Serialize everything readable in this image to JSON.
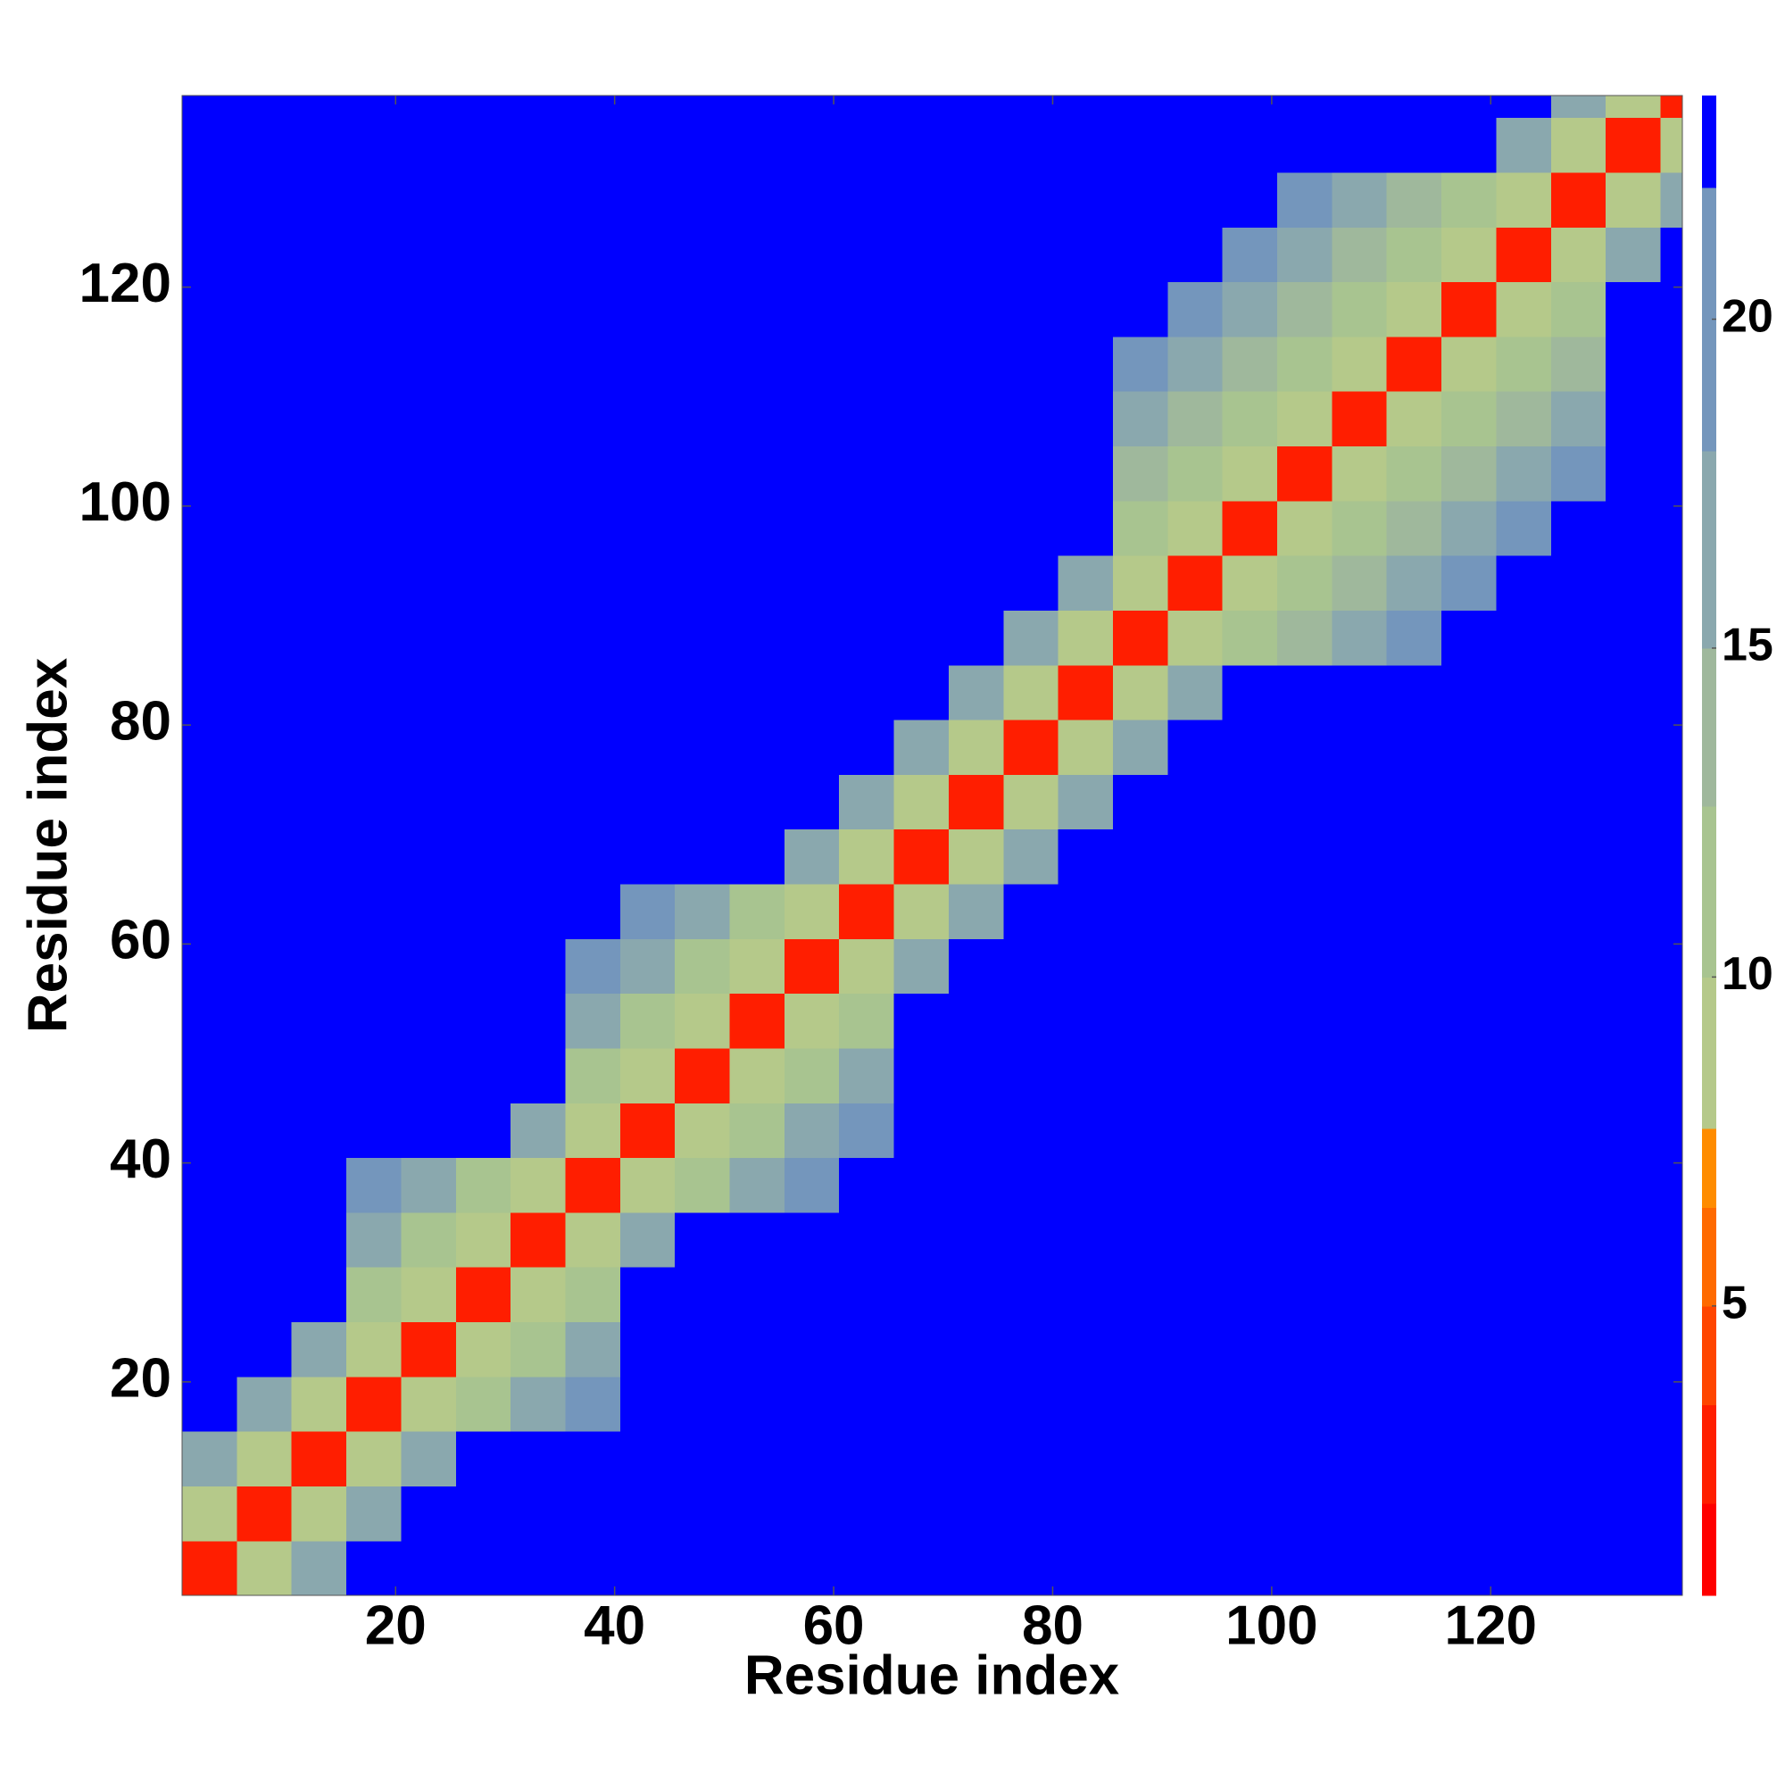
{
  "chart_data": {
    "type": "heatmap",
    "xlabel": "Residue index",
    "ylabel": "Residue index",
    "xlim": [
      0.5,
      137.5
    ],
    "ylim": [
      0.5,
      137.5
    ],
    "xticks": [
      20,
      40,
      60,
      80,
      100,
      120
    ],
    "yticks": [
      20,
      40,
      60,
      80,
      100,
      120
    ],
    "xbins": [
      0.5,
      5.5,
      10.5,
      15.5,
      20.5,
      25.5,
      30.5,
      35.5,
      40.5,
      45.5,
      50.5,
      55.5,
      60.5,
      65.5,
      70.5,
      75.5,
      80.5,
      85.5,
      90.5,
      95.5,
      100.5,
      105.5,
      110.5,
      115.5,
      120.5,
      125.5,
      130.5,
      135.5,
      137.5
    ],
    "ybins": [
      0.5,
      5.5,
      10.5,
      15.5,
      20.5,
      25.5,
      30.5,
      35.5,
      40.5,
      45.5,
      50.5,
      55.5,
      60.5,
      65.5,
      70.5,
      75.5,
      80.5,
      85.5,
      90.5,
      95.5,
      100.5,
      105.5,
      110.5,
      115.5,
      120.5,
      125.5,
      130.5,
      135.5,
      137.5
    ],
    "z": [
      [
        3,
        9,
        17,
        24,
        24,
        24,
        24,
        24,
        24,
        24,
        24,
        24,
        24,
        24,
        24,
        24,
        24,
        24,
        24,
        24,
        24,
        24,
        24,
        24,
        24,
        24,
        24,
        24
      ],
      [
        9,
        3,
        9,
        17,
        24,
        24,
        24,
        24,
        24,
        24,
        24,
        24,
        24,
        24,
        24,
        24,
        24,
        24,
        24,
        24,
        24,
        24,
        24,
        24,
        24,
        24,
        24,
        24
      ],
      [
        17,
        9,
        3,
        9,
        17,
        24,
        24,
        24,
        24,
        24,
        24,
        24,
        24,
        24,
        24,
        24,
        24,
        24,
        24,
        24,
        24,
        24,
        24,
        24,
        24,
        24,
        24,
        24
      ],
      [
        24,
        17,
        9,
        3,
        9,
        12,
        15,
        18,
        24,
        24,
        24,
        24,
        24,
        24,
        24,
        24,
        24,
        24,
        24,
        24,
        24,
        24,
        24,
        24,
        24,
        24,
        24,
        24
      ],
      [
        24,
        24,
        17,
        9,
        3,
        9,
        12,
        15,
        24,
        24,
        24,
        24,
        24,
        24,
        24,
        24,
        24,
        24,
        24,
        24,
        24,
        24,
        24,
        24,
        24,
        24,
        24,
        24
      ],
      [
        24,
        24,
        24,
        12,
        9,
        3,
        9,
        12,
        24,
        24,
        24,
        24,
        24,
        24,
        24,
        24,
        24,
        24,
        24,
        24,
        24,
        24,
        24,
        24,
        24,
        24,
        24,
        24
      ],
      [
        24,
        24,
        24,
        15,
        12,
        9,
        3,
        9,
        17,
        24,
        24,
        24,
        24,
        24,
        24,
        24,
        24,
        24,
        24,
        24,
        24,
        24,
        24,
        24,
        24,
        24,
        24,
        24
      ],
      [
        24,
        24,
        24,
        18,
        15,
        12,
        9,
        3,
        9,
        12,
        15,
        18,
        24,
        24,
        24,
        24,
        24,
        24,
        24,
        24,
        24,
        24,
        24,
        24,
        24,
        24,
        24,
        24
      ],
      [
        24,
        24,
        24,
        24,
        24,
        24,
        17,
        9,
        3,
        9,
        12,
        15,
        18,
        24,
        24,
        24,
        24,
        24,
        24,
        24,
        24,
        24,
        24,
        24,
        24,
        24,
        24,
        24
      ],
      [
        24,
        24,
        24,
        24,
        24,
        24,
        24,
        12,
        9,
        3,
        9,
        12,
        15,
        24,
        24,
        24,
        24,
        24,
        24,
        24,
        24,
        24,
        24,
        24,
        24,
        24,
        24,
        24
      ],
      [
        24,
        24,
        24,
        24,
        24,
        24,
        24,
        15,
        12,
        9,
        3,
        9,
        12,
        24,
        24,
        24,
        24,
        24,
        24,
        24,
        24,
        24,
        24,
        24,
        24,
        24,
        24,
        24
      ],
      [
        24,
        24,
        24,
        24,
        24,
        24,
        24,
        18,
        15,
        12,
        9,
        3,
        9,
        17,
        24,
        24,
        24,
        24,
        24,
        24,
        24,
        24,
        24,
        24,
        24,
        24,
        24,
        24
      ],
      [
        24,
        24,
        24,
        24,
        24,
        24,
        24,
        24,
        18,
        15,
        12,
        9,
        3,
        9,
        17,
        24,
        24,
        24,
        24,
        24,
        24,
        24,
        24,
        24,
        24,
        24,
        24,
        24
      ],
      [
        24,
        24,
        24,
        24,
        24,
        24,
        24,
        24,
        24,
        24,
        24,
        17,
        9,
        3,
        9,
        17,
        24,
        24,
        24,
        24,
        24,
        24,
        24,
        24,
        24,
        24,
        24,
        24
      ],
      [
        24,
        24,
        24,
        24,
        24,
        24,
        24,
        24,
        24,
        24,
        24,
        24,
        17,
        9,
        3,
        9,
        17,
        24,
        24,
        24,
        24,
        24,
        24,
        24,
        24,
        24,
        24,
        24
      ],
      [
        24,
        24,
        24,
        24,
        24,
        24,
        24,
        24,
        24,
        24,
        24,
        24,
        24,
        17,
        9,
        3,
        9,
        17,
        24,
        24,
        24,
        24,
        24,
        24,
        24,
        24,
        24,
        24
      ],
      [
        24,
        24,
        24,
        24,
        24,
        24,
        24,
        24,
        24,
        24,
        24,
        24,
        24,
        24,
        17,
        9,
        3,
        9,
        17,
        24,
        24,
        24,
        24,
        24,
        24,
        24,
        24,
        24
      ],
      [
        24,
        24,
        24,
        24,
        24,
        24,
        24,
        24,
        24,
        24,
        24,
        24,
        24,
        24,
        24,
        17,
        9,
        3,
        9,
        11,
        14,
        16,
        19,
        24,
        24,
        24,
        24,
        24
      ],
      [
        24,
        24,
        24,
        24,
        24,
        24,
        24,
        24,
        24,
        24,
        24,
        24,
        24,
        24,
        24,
        24,
        17,
        9,
        3,
        9,
        11,
        14,
        16,
        19,
        24,
        24,
        24,
        24
      ],
      [
        24,
        24,
        24,
        24,
        24,
        24,
        24,
        24,
        24,
        24,
        24,
        24,
        24,
        24,
        24,
        24,
        24,
        11,
        9,
        3,
        9,
        11,
        14,
        16,
        19,
        24,
        24,
        24
      ],
      [
        24,
        24,
        24,
        24,
        24,
        24,
        24,
        24,
        24,
        24,
        24,
        24,
        24,
        24,
        24,
        24,
        24,
        14,
        11,
        9,
        3,
        9,
        11,
        14,
        16,
        19,
        24,
        24
      ],
      [
        24,
        24,
        24,
        24,
        24,
        24,
        24,
        24,
        24,
        24,
        24,
        24,
        24,
        24,
        24,
        24,
        24,
        16,
        14,
        11,
        9,
        3,
        9,
        11,
        14,
        16,
        24,
        24
      ],
      [
        24,
        24,
        24,
        24,
        24,
        24,
        24,
        24,
        24,
        24,
        24,
        24,
        24,
        24,
        24,
        24,
        24,
        19,
        16,
        14,
        11,
        9,
        3,
        9,
        11,
        14,
        24,
        24
      ],
      [
        24,
        24,
        24,
        24,
        24,
        24,
        24,
        24,
        24,
        24,
        24,
        24,
        24,
        24,
        24,
        24,
        24,
        24,
        19,
        16,
        14,
        11,
        9,
        3,
        9,
        11,
        24,
        24
      ],
      [
        24,
        24,
        24,
        24,
        24,
        24,
        24,
        24,
        24,
        24,
        24,
        24,
        24,
        24,
        24,
        24,
        24,
        24,
        24,
        19,
        16,
        14,
        11,
        9,
        3,
        9,
        17,
        24
      ],
      [
        24,
        24,
        24,
        24,
        24,
        24,
        24,
        24,
        24,
        24,
        24,
        24,
        24,
        24,
        24,
        24,
        24,
        24,
        24,
        24,
        19,
        16,
        14,
        11,
        9,
        3,
        9,
        17
      ],
      [
        24,
        24,
        24,
        24,
        24,
        24,
        24,
        24,
        24,
        24,
        24,
        24,
        24,
        24,
        24,
        24,
        24,
        24,
        24,
        24,
        24,
        24,
        24,
        24,
        17,
        9,
        3,
        9
      ],
      [
        24,
        24,
        24,
        24,
        24,
        24,
        24,
        24,
        24,
        24,
        24,
        24,
        24,
        24,
        24,
        24,
        24,
        24,
        24,
        24,
        24,
        24,
        24,
        24,
        24,
        17,
        9,
        3
      ]
    ],
    "colorbar": {
      "levels": [
        0.6,
        2,
        3.5,
        5,
        6.5,
        7.7,
        10,
        12.6,
        15,
        18,
        22,
        23.4
      ],
      "colors": [
        "#ff0000",
        "#ff1e00",
        "#ff4500",
        "#ff6a00",
        "#ff8c00",
        "#b5c98a",
        "#a8c490",
        "#9fb89c",
        "#8aa8ae",
        "#7496bc",
        "#0000ff"
      ],
      "ticks": [
        5,
        10,
        15,
        20
      ]
    }
  }
}
